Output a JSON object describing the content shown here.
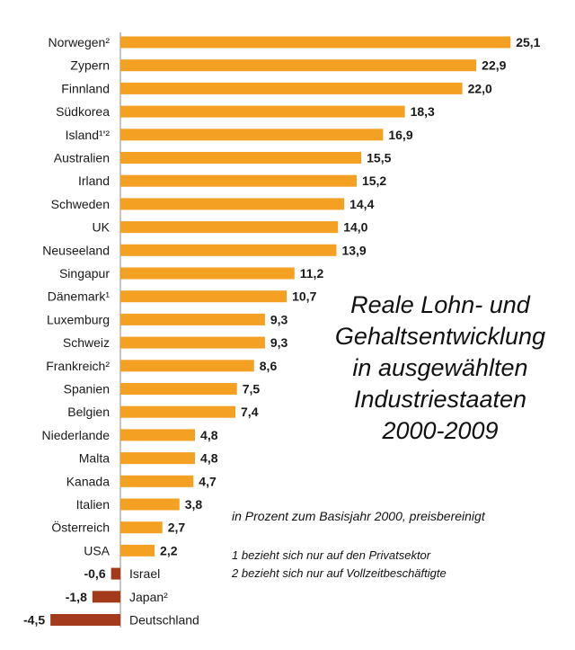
{
  "chart_data": {
    "type": "bar",
    "orientation": "horizontal",
    "title_lines": [
      "Reale Lohn- und",
      "Gehaltsentwicklung",
      "in ausgewählten",
      "Industriestaaten",
      "2000-2009"
    ],
    "subtitle": "in Prozent zum Basisjahr 2000, preisbereinigt",
    "footnotes": [
      "1 bezieht sich nur auf den Privatsektor",
      "2 bezieht sich nur auf Vollzeitbeschäftigte"
    ],
    "categories": [
      "Norwegen²",
      "Zypern",
      "Finnland",
      "Südkorea",
      "Island¹'²",
      "Australien",
      "Irland",
      "Schweden",
      "UK",
      "Neuseeland",
      "Singapur",
      "Dänemark¹",
      "Luxemburg",
      "Schweiz",
      "Frankreich²",
      "Spanien",
      "Belgien",
      "Niederlande",
      "Malta",
      "Kanada",
      "Italien",
      "Österreich",
      "USA",
      "Israel",
      "Japan²",
      "Deutschland"
    ],
    "values": [
      25.1,
      22.9,
      22.0,
      18.3,
      16.9,
      15.5,
      15.2,
      14.4,
      14.0,
      13.9,
      11.2,
      10.7,
      9.3,
      9.3,
      8.6,
      7.5,
      7.4,
      4.8,
      4.8,
      4.7,
      3.8,
      2.7,
      2.2,
      -0.6,
      -1.8,
      -4.5
    ],
    "value_labels": [
      "25,1",
      "22,9",
      "22,0",
      "18,3",
      "16,9",
      "15,5",
      "15,2",
      "14,4",
      "14,0",
      "13,9",
      "11,2",
      "10,7",
      "9,3",
      "9,3",
      "8,6",
      "7,5",
      "7,4",
      "4,8",
      "4,8",
      "4,7",
      "3,8",
      "2,7",
      "2,2",
      "-0,6",
      "-1,8",
      "-4,5"
    ],
    "colors": {
      "positive": "#f4a023",
      "negative": "#a33a1c"
    },
    "grid": false,
    "legend": "none"
  }
}
